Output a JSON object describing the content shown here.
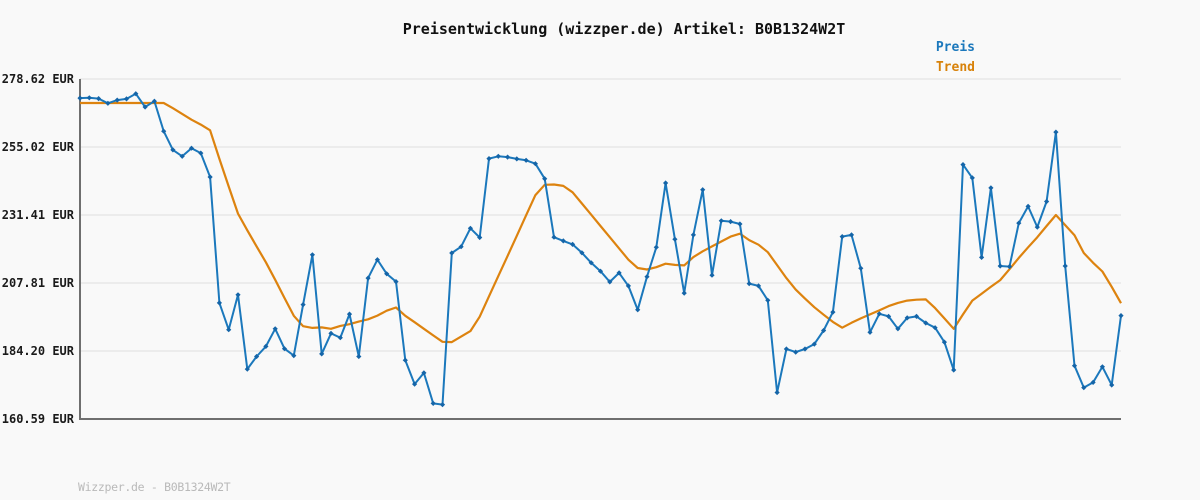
{
  "title": "Preisentwicklung (wizzper.de) Artikel: B0B1324W2T",
  "footer": "Wizzper.de - B0B1324W2T",
  "legend": {
    "items": [
      {
        "label": "Preis",
        "color": "#1b78bc"
      },
      {
        "label": "Trend",
        "color": "#d8820a"
      }
    ]
  },
  "colors": {
    "background": "#f9f9f9",
    "gridline": "#e7e7e7",
    "axis": "#6f6f6f",
    "price_line": "#1b78bc",
    "trend_line": "#dd830f",
    "footer_text": "#b9b9b9"
  },
  "chart_data": {
    "type": "line",
    "title": "Preisentwicklung (wizzper.de) Artikel: B0B1324W2T",
    "xlabel": "",
    "ylabel": "EUR",
    "ylim": [
      160.59,
      278.62
    ],
    "grid": "horizontal",
    "legend_position": "top-right",
    "x_tick_labels": [],
    "y_ticks": [
      {
        "label": "278.62 EUR",
        "value": 278.62
      },
      {
        "label": "255.02 EUR",
        "value": 255.02
      },
      {
        "label": "231.41 EUR",
        "value": 231.41
      },
      {
        "label": "207.81 EUR",
        "value": 207.81
      },
      {
        "label": "184.20 EUR",
        "value": 184.2
      },
      {
        "label": "160.59 EUR",
        "value": 160.59
      }
    ],
    "series": [
      {
        "name": "Trend",
        "color": "#dd830f",
        "markers": "none",
        "values": [
          270.3,
          270.3,
          270.3,
          270.3,
          270.3,
          270.3,
          270.3,
          270.3,
          270.3,
          270.3,
          268.5,
          266.5,
          264.5,
          262.8,
          260.8,
          250.9,
          241.3,
          231.9,
          226.1,
          220.5,
          215.0,
          208.9,
          202.6,
          196.4,
          192.8,
          192.2,
          192.4,
          191.9,
          192.9,
          193.5,
          194.4,
          195.2,
          196.5,
          198.2,
          199.3,
          196.4,
          194.2,
          191.9,
          189.6,
          187.4,
          187.3,
          189.2,
          191.1,
          196.1,
          203.2,
          210.2,
          217.2,
          224.2,
          231.3,
          238.3,
          241.9,
          242.0,
          241.5,
          239.3,
          235.4,
          231.5,
          227.6,
          223.7,
          219.8,
          215.9,
          213.0,
          212.5,
          213.3,
          214.5,
          214.1,
          213.9,
          216.8,
          218.8,
          220.5,
          222.2,
          223.9,
          224.9,
          222.7,
          221.1,
          218.5,
          214.0,
          209.5,
          205.5,
          202.4,
          199.4,
          196.8,
          194.3,
          192.3,
          194.0,
          195.5,
          196.9,
          198.3,
          199.8,
          200.9,
          201.7,
          202.0,
          202.1,
          199.1,
          195.5,
          191.9,
          196.9,
          201.7,
          204.1,
          206.5,
          208.8,
          212.6,
          216.5,
          220.2,
          223.7,
          227.6,
          231.4,
          227.9,
          224.4,
          218.2,
          214.8,
          211.8,
          206.5,
          200.8
        ]
      },
      {
        "name": "Preis",
        "color": "#1b78bc",
        "markers": "diamond",
        "values": [
          272.0,
          272.1,
          271.8,
          270.2,
          271.3,
          271.7,
          273.5,
          268.9,
          270.9,
          260.5,
          254.0,
          251.8,
          254.6,
          252.9,
          244.6,
          200.9,
          191.6,
          203.7,
          177.9,
          182.3,
          185.8,
          191.9,
          185.0,
          182.6,
          200.3,
          217.6,
          183.2,
          190.3,
          188.8,
          197.0,
          182.3,
          209.5,
          215.9,
          211.0,
          208.3,
          181.0,
          172.7,
          176.6,
          166.0,
          165.6,
          218.2,
          220.4,
          226.8,
          223.6,
          251.0,
          251.8,
          251.5,
          250.9,
          250.4,
          249.2,
          244.0,
          223.7,
          222.4,
          221.2,
          218.3,
          214.8,
          211.9,
          208.2,
          211.3,
          206.8,
          198.5,
          210.0,
          220.2,
          242.5,
          223.0,
          204.3,
          224.5,
          240.2,
          210.5,
          229.4,
          229.1,
          228.3,
          207.6,
          206.8,
          201.8,
          169.8,
          184.9,
          183.8,
          184.9,
          186.6,
          191.3,
          197.7,
          223.9,
          224.5,
          212.9,
          190.7,
          197.1,
          196.2,
          191.9,
          195.7,
          196.2,
          193.9,
          192.3,
          187.3,
          177.6,
          248.9,
          244.3,
          216.7,
          240.8,
          213.7,
          213.5,
          228.6,
          234.4,
          227.2,
          236.1,
          260.2,
          213.7,
          179.1,
          171.5,
          173.3,
          178.7,
          172.4,
          196.5
        ]
      }
    ]
  }
}
